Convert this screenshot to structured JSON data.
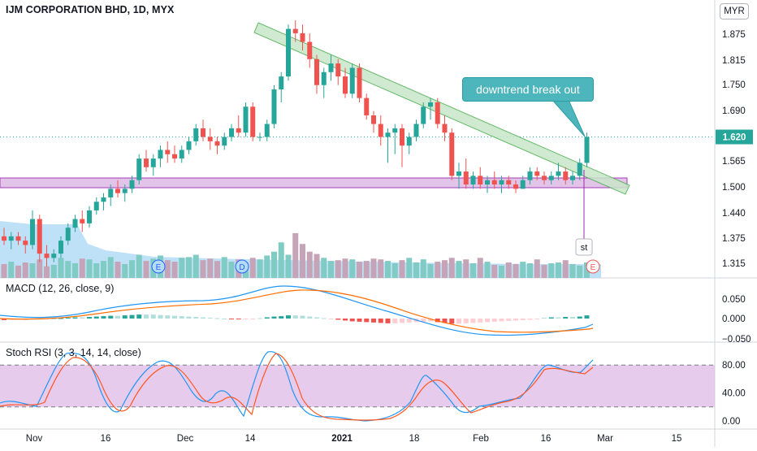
{
  "header": {
    "symbol_title": "IJM CORPORATION BHD, 1D, MYX",
    "currency": "MYR"
  },
  "chart_data": [
    {
      "type": "candlestick",
      "title": "IJM CORPORATION BHD, 1D, MYX",
      "y_ticks": [
        "1.875",
        "1.815",
        "1.750",
        "1.690",
        "1.630",
        "1.565",
        "1.500",
        "1.440",
        "1.375",
        "1.315"
      ],
      "x_ticks": [
        "Nov",
        "16",
        "Dec",
        "14",
        "2021",
        "18",
        "Feb",
        "16",
        "Mar",
        "15"
      ],
      "last_price": "1.620",
      "ylim": [
        1.29,
        1.92
      ],
      "colors": {
        "up": "#26a69a",
        "down": "#ef5350"
      },
      "candles": [
        [
          1.39,
          1.41,
          1.37,
          1.38
        ],
        [
          1.38,
          1.4,
          1.36,
          1.39
        ],
        [
          1.39,
          1.4,
          1.37,
          1.38
        ],
        [
          1.38,
          1.39,
          1.35,
          1.37
        ],
        [
          1.37,
          1.45,
          1.36,
          1.43
        ],
        [
          1.43,
          1.44,
          1.33,
          1.35
        ],
        [
          1.35,
          1.37,
          1.32,
          1.34
        ],
        [
          1.34,
          1.36,
          1.33,
          1.35
        ],
        [
          1.35,
          1.39,
          1.34,
          1.38
        ],
        [
          1.38,
          1.42,
          1.37,
          1.41
        ],
        [
          1.41,
          1.44,
          1.4,
          1.43
        ],
        [
          1.43,
          1.45,
          1.4,
          1.42
        ],
        [
          1.42,
          1.46,
          1.41,
          1.45
        ],
        [
          1.45,
          1.48,
          1.44,
          1.47
        ],
        [
          1.47,
          1.49,
          1.45,
          1.48
        ],
        [
          1.48,
          1.51,
          1.46,
          1.5
        ],
        [
          1.5,
          1.52,
          1.48,
          1.49
        ],
        [
          1.49,
          1.51,
          1.47,
          1.5
        ],
        [
          1.5,
          1.53,
          1.49,
          1.52
        ],
        [
          1.52,
          1.58,
          1.51,
          1.57
        ],
        [
          1.57,
          1.59,
          1.54,
          1.55
        ],
        [
          1.55,
          1.58,
          1.53,
          1.57
        ],
        [
          1.57,
          1.6,
          1.55,
          1.59
        ],
        [
          1.59,
          1.61,
          1.56,
          1.58
        ],
        [
          1.58,
          1.6,
          1.56,
          1.57
        ],
        [
          1.57,
          1.6,
          1.56,
          1.59
        ],
        [
          1.59,
          1.62,
          1.58,
          1.61
        ],
        [
          1.61,
          1.65,
          1.6,
          1.64
        ],
        [
          1.64,
          1.66,
          1.61,
          1.62
        ],
        [
          1.62,
          1.64,
          1.59,
          1.61
        ],
        [
          1.61,
          1.62,
          1.58,
          1.6
        ],
        [
          1.6,
          1.63,
          1.59,
          1.62
        ],
        [
          1.62,
          1.65,
          1.61,
          1.64
        ],
        [
          1.64,
          1.67,
          1.62,
          1.63
        ],
        [
          1.63,
          1.7,
          1.62,
          1.69
        ],
        [
          1.69,
          1.7,
          1.61,
          1.62
        ],
        [
          1.62,
          1.63,
          1.61,
          1.62
        ],
        [
          1.62,
          1.66,
          1.61,
          1.65
        ],
        [
          1.65,
          1.74,
          1.64,
          1.73
        ],
        [
          1.73,
          1.77,
          1.7,
          1.76
        ],
        [
          1.76,
          1.88,
          1.75,
          1.87
        ],
        [
          1.87,
          1.89,
          1.84,
          1.86
        ],
        [
          1.86,
          1.88,
          1.82,
          1.84
        ],
        [
          1.84,
          1.86,
          1.78,
          1.8
        ],
        [
          1.8,
          1.81,
          1.72,
          1.74
        ],
        [
          1.74,
          1.78,
          1.71,
          1.77
        ],
        [
          1.77,
          1.81,
          1.75,
          1.79
        ],
        [
          1.79,
          1.8,
          1.74,
          1.76
        ],
        [
          1.76,
          1.78,
          1.71,
          1.72
        ],
        [
          1.72,
          1.79,
          1.71,
          1.78
        ],
        [
          1.78,
          1.79,
          1.7,
          1.71
        ],
        [
          1.71,
          1.72,
          1.66,
          1.67
        ],
        [
          1.67,
          1.68,
          1.63,
          1.65
        ],
        [
          1.65,
          1.67,
          1.6,
          1.62
        ],
        [
          1.62,
          1.64,
          1.56,
          1.63
        ],
        [
          1.63,
          1.65,
          1.58,
          1.64
        ],
        [
          1.64,
          1.65,
          1.55,
          1.6
        ],
        [
          1.6,
          1.63,
          1.58,
          1.62
        ],
        [
          1.62,
          1.66,
          1.61,
          1.65
        ],
        [
          1.65,
          1.7,
          1.64,
          1.69
        ],
        [
          1.69,
          1.71,
          1.66,
          1.7
        ],
        [
          1.7,
          1.71,
          1.64,
          1.65
        ],
        [
          1.65,
          1.67,
          1.61,
          1.63
        ],
        [
          1.63,
          1.64,
          1.52,
          1.53
        ],
        [
          1.53,
          1.56,
          1.5,
          1.54
        ],
        [
          1.54,
          1.57,
          1.5,
          1.51
        ],
        [
          1.51,
          1.54,
          1.5,
          1.53
        ],
        [
          1.53,
          1.55,
          1.5,
          1.51
        ],
        [
          1.51,
          1.53,
          1.49,
          1.52
        ],
        [
          1.52,
          1.54,
          1.5,
          1.51
        ],
        [
          1.51,
          1.53,
          1.49,
          1.52
        ],
        [
          1.52,
          1.53,
          1.5,
          1.51
        ],
        [
          1.51,
          1.52,
          1.49,
          1.5
        ],
        [
          1.5,
          1.53,
          1.5,
          1.52
        ],
        [
          1.52,
          1.55,
          1.51,
          1.54
        ],
        [
          1.54,
          1.55,
          1.52,
          1.53
        ],
        [
          1.53,
          1.54,
          1.51,
          1.52
        ],
        [
          1.52,
          1.54,
          1.51,
          1.53
        ],
        [
          1.53,
          1.56,
          1.52,
          1.54
        ],
        [
          1.54,
          1.55,
          1.51,
          1.52
        ],
        [
          1.52,
          1.54,
          1.51,
          1.53
        ],
        [
          1.53,
          1.57,
          1.52,
          1.56
        ],
        [
          1.56,
          1.63,
          1.55,
          1.62
        ]
      ],
      "volume_colors": {
        "up": "#80cbc4",
        "down": "#c5a4b8"
      },
      "earnings_markers": [
        "E",
        "D",
        "E"
      ],
      "annotations": {
        "callout": "downtrend break out",
        "split_label": "st"
      }
    },
    {
      "type": "line",
      "title": "MACD (12, 26, close, 9)",
      "y_ticks": [
        "0.050",
        "0.000",
        "−0.050"
      ],
      "series": [
        {
          "name": "MACD"
        },
        {
          "name": "Signal"
        },
        {
          "name": "Histogram"
        }
      ]
    },
    {
      "type": "line",
      "title": "Stoch RSI (3, 3, 14, 14, close)",
      "y_ticks": [
        "80.00",
        "40.00",
        "0.00"
      ],
      "ylim": [
        0,
        100
      ],
      "bands": [
        20,
        80
      ]
    }
  ]
}
